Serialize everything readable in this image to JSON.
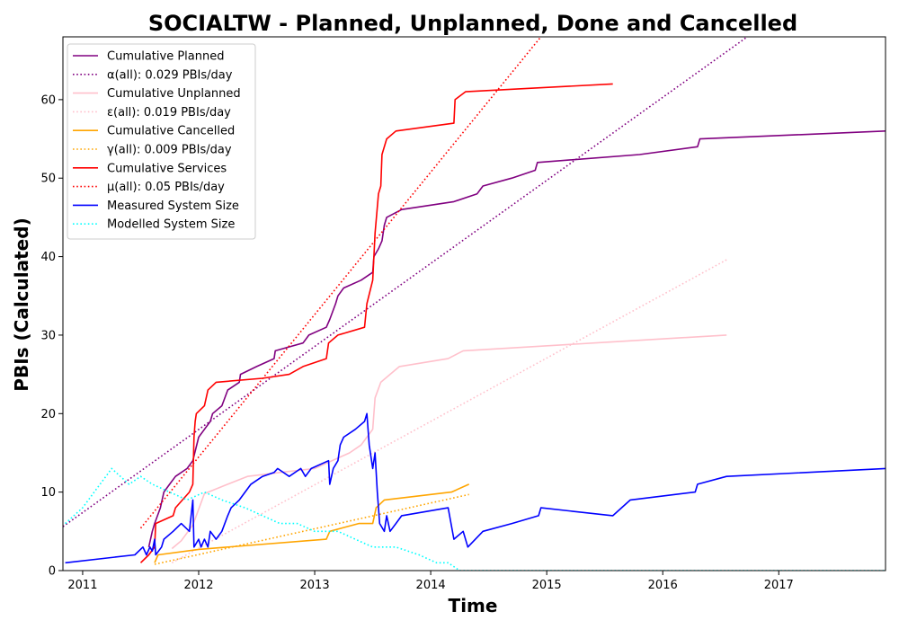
{
  "chart_data": {
    "type": "line",
    "title": "SOCIALTW - Planned, Unplanned, Done  and Cancelled",
    "xlabel": "Time",
    "ylabel": "PBIs (Calculated)",
    "xlim": [
      2010.83,
      2017.92
    ],
    "ylim": [
      0,
      68
    ],
    "x_ticks": [
      2011,
      2012,
      2013,
      2014,
      2015,
      2016,
      2017
    ],
    "y_ticks": [
      0,
      10,
      20,
      30,
      40,
      50,
      60
    ],
    "grid": false,
    "legend_position": "upper-left",
    "series": [
      {
        "name": "Cumulative Planned",
        "color": "#800080",
        "style": "solid",
        "points": [
          [
            2011.57,
            3
          ],
          [
            2011.6,
            5
          ],
          [
            2011.62,
            6
          ],
          [
            2011.67,
            8
          ],
          [
            2011.7,
            10
          ],
          [
            2011.75,
            11
          ],
          [
            2011.8,
            12
          ],
          [
            2011.9,
            13
          ],
          [
            2011.95,
            14
          ],
          [
            2012.0,
            17
          ],
          [
            2012.05,
            18
          ],
          [
            2012.1,
            19
          ],
          [
            2012.12,
            20
          ],
          [
            2012.2,
            21
          ],
          [
            2012.25,
            23
          ],
          [
            2012.35,
            24
          ],
          [
            2012.36,
            25
          ],
          [
            2012.5,
            26
          ],
          [
            2012.65,
            27
          ],
          [
            2012.66,
            28
          ],
          [
            2012.9,
            29
          ],
          [
            2012.95,
            30
          ],
          [
            2013.1,
            31
          ],
          [
            2013.13,
            32
          ],
          [
            2013.18,
            34
          ],
          [
            2013.2,
            35
          ],
          [
            2013.25,
            36
          ],
          [
            2013.4,
            37
          ],
          [
            2013.5,
            38
          ],
          [
            2013.51,
            40
          ],
          [
            2013.55,
            41
          ],
          [
            2013.58,
            42
          ],
          [
            2013.6,
            44
          ],
          [
            2013.62,
            45
          ],
          [
            2013.75,
            46
          ],
          [
            2014.2,
            47
          ],
          [
            2014.4,
            48
          ],
          [
            2014.45,
            49
          ],
          [
            2014.7,
            50
          ],
          [
            2014.9,
            51
          ],
          [
            2014.92,
            52
          ],
          [
            2015.8,
            53
          ],
          [
            2016.3,
            54
          ],
          [
            2016.32,
            55
          ],
          [
            2017.92,
            56
          ]
        ]
      },
      {
        "name": "α(all): 0.029 PBIs/day",
        "color": "#800080",
        "style": "dotted",
        "points": [
          [
            2010.83,
            5.6
          ],
          [
            2017.92,
            80.6
          ]
        ]
      },
      {
        "name": "Cumulative Unplanned",
        "color": "#ffc0cb",
        "style": "solid",
        "points": [
          [
            2011.77,
            2.8
          ],
          [
            2011.85,
            3.8
          ],
          [
            2011.95,
            5.8
          ],
          [
            2012.05,
            9.8
          ],
          [
            2012.25,
            11
          ],
          [
            2012.42,
            12
          ],
          [
            2012.7,
            12.5
          ],
          [
            2013.0,
            13
          ],
          [
            2013.15,
            14
          ],
          [
            2013.3,
            15
          ],
          [
            2013.4,
            16
          ],
          [
            2013.45,
            17
          ],
          [
            2013.5,
            18
          ],
          [
            2013.52,
            22
          ],
          [
            2013.57,
            24
          ],
          [
            2013.65,
            25
          ],
          [
            2013.73,
            26
          ],
          [
            2014.15,
            27
          ],
          [
            2014.28,
            28
          ],
          [
            2016.55,
            30
          ]
        ]
      },
      {
        "name": "ε(all): 0.019 PBIs/day",
        "color": "#ffc0cb",
        "style": "dotted",
        "points": [
          [
            2011.77,
            1.0
          ],
          [
            2016.55,
            39.6
          ]
        ]
      },
      {
        "name": "Cumulative Cancelled",
        "color": "#ffa500",
        "style": "solid",
        "points": [
          [
            2011.62,
            1
          ],
          [
            2011.65,
            2
          ],
          [
            2012.0,
            2.7
          ],
          [
            2012.25,
            3
          ],
          [
            2013.1,
            4
          ],
          [
            2013.13,
            5
          ],
          [
            2013.38,
            6
          ],
          [
            2013.5,
            6
          ],
          [
            2013.53,
            8
          ],
          [
            2013.6,
            9
          ],
          [
            2014.18,
            10
          ],
          [
            2014.33,
            11
          ]
        ]
      },
      {
        "name": "γ(all): 0.009 PBIs/day",
        "color": "#ffa500",
        "style": "dotted",
        "points": [
          [
            2011.62,
            0.8
          ],
          [
            2014.33,
            9.7
          ]
        ]
      },
      {
        "name": "Cumulative Services",
        "color": "#ff0000",
        "style": "solid",
        "points": [
          [
            2011.5,
            1
          ],
          [
            2011.57,
            2
          ],
          [
            2011.62,
            3
          ],
          [
            2011.63,
            6
          ],
          [
            2011.78,
            7
          ],
          [
            2011.8,
            8
          ],
          [
            2011.92,
            10
          ],
          [
            2011.95,
            11
          ],
          [
            2011.96,
            17
          ],
          [
            2011.97,
            19
          ],
          [
            2011.98,
            20
          ],
          [
            2012.05,
            21
          ],
          [
            2012.08,
            23
          ],
          [
            2012.15,
            24
          ],
          [
            2012.55,
            24.5
          ],
          [
            2012.78,
            25
          ],
          [
            2012.9,
            26
          ],
          [
            2013.1,
            27
          ],
          [
            2013.12,
            29
          ],
          [
            2013.2,
            30
          ],
          [
            2013.43,
            31
          ],
          [
            2013.45,
            34
          ],
          [
            2013.5,
            37
          ],
          [
            2013.52,
            43
          ],
          [
            2013.55,
            48
          ],
          [
            2013.57,
            49
          ],
          [
            2013.58,
            53
          ],
          [
            2013.62,
            55
          ],
          [
            2013.7,
            56
          ],
          [
            2014.2,
            57
          ],
          [
            2014.21,
            60
          ],
          [
            2014.3,
            61
          ],
          [
            2015.57,
            62
          ]
        ]
      },
      {
        "name": "μ(all): 0.05 PBIs/day",
        "color": "#ff0000",
        "style": "dotted",
        "points": [
          [
            2011.5,
            5.4
          ],
          [
            2014.95,
            68
          ]
        ]
      },
      {
        "name": "Measured System Size",
        "color": "#0000ff",
        "style": "solid",
        "points": [
          [
            2010.85,
            1
          ],
          [
            2011.45,
            2
          ],
          [
            2011.52,
            3
          ],
          [
            2011.55,
            2
          ],
          [
            2011.58,
            3
          ],
          [
            2011.6,
            2.5
          ],
          [
            2011.62,
            4
          ],
          [
            2011.63,
            2
          ],
          [
            2011.68,
            3
          ],
          [
            2011.7,
            4
          ],
          [
            2011.78,
            5
          ],
          [
            2011.85,
            6
          ],
          [
            2011.92,
            5
          ],
          [
            2011.95,
            9
          ],
          [
            2011.96,
            3
          ],
          [
            2012.0,
            4
          ],
          [
            2012.02,
            3
          ],
          [
            2012.05,
            4
          ],
          [
            2012.08,
            3
          ],
          [
            2012.1,
            5
          ],
          [
            2012.15,
            4
          ],
          [
            2012.2,
            5
          ],
          [
            2012.25,
            7
          ],
          [
            2012.28,
            8
          ],
          [
            2012.35,
            9
          ],
          [
            2012.45,
            11
          ],
          [
            2012.55,
            12
          ],
          [
            2012.65,
            12.5
          ],
          [
            2012.68,
            13
          ],
          [
            2012.78,
            12
          ],
          [
            2012.88,
            13
          ],
          [
            2012.92,
            12
          ],
          [
            2012.97,
            13
          ],
          [
            2013.12,
            14
          ],
          [
            2013.13,
            11
          ],
          [
            2013.16,
            13
          ],
          [
            2013.2,
            14
          ],
          [
            2013.22,
            16
          ],
          [
            2013.25,
            17
          ],
          [
            2013.35,
            18
          ],
          [
            2013.43,
            19
          ],
          [
            2013.45,
            20
          ],
          [
            2013.47,
            16
          ],
          [
            2013.5,
            13
          ],
          [
            2013.52,
            15
          ],
          [
            2013.54,
            10
          ],
          [
            2013.56,
            6
          ],
          [
            2013.6,
            5
          ],
          [
            2013.62,
            7
          ],
          [
            2013.65,
            5
          ],
          [
            2013.7,
            6
          ],
          [
            2013.75,
            7
          ],
          [
            2014.15,
            8
          ],
          [
            2014.2,
            4
          ],
          [
            2014.28,
            5
          ],
          [
            2014.32,
            3
          ],
          [
            2014.45,
            5
          ],
          [
            2014.7,
            6
          ],
          [
            2014.93,
            7
          ],
          [
            2014.95,
            8
          ],
          [
            2015.57,
            7
          ],
          [
            2015.72,
            9
          ],
          [
            2016.28,
            10
          ],
          [
            2016.3,
            11
          ],
          [
            2016.55,
            12
          ],
          [
            2017.92,
            13
          ]
        ]
      },
      {
        "name": "Modelled System Size",
        "color": "#00ffff",
        "style": "dotted",
        "points": [
          [
            2010.85,
            6
          ],
          [
            2011.0,
            8
          ],
          [
            2011.1,
            10
          ],
          [
            2011.2,
            12
          ],
          [
            2011.25,
            13
          ],
          [
            2011.4,
            11
          ],
          [
            2011.5,
            12
          ],
          [
            2011.6,
            11
          ],
          [
            2011.75,
            10
          ],
          [
            2011.9,
            9
          ],
          [
            2012.05,
            10
          ],
          [
            2012.2,
            9
          ],
          [
            2012.4,
            8
          ],
          [
            2012.55,
            7
          ],
          [
            2012.7,
            6
          ],
          [
            2012.85,
            6
          ],
          [
            2013.0,
            5
          ],
          [
            2013.2,
            5
          ],
          [
            2013.35,
            4
          ],
          [
            2013.5,
            3
          ],
          [
            2013.7,
            3
          ],
          [
            2013.9,
            2
          ],
          [
            2014.05,
            1
          ],
          [
            2014.15,
            1
          ],
          [
            2014.25,
            0
          ],
          [
            2017.92,
            0
          ]
        ]
      }
    ]
  }
}
